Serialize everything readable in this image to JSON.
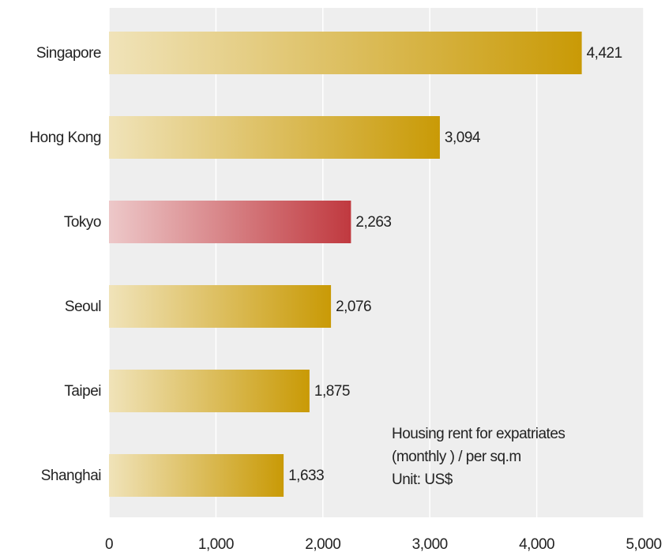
{
  "chart_data": {
    "type": "barh",
    "categories": [
      "Singapore",
      "Hong Kong",
      "Tokyo",
      "Seoul",
      "Taipei",
      "Shanghai"
    ],
    "values": [
      4421,
      3094,
      2263,
      2076,
      1875,
      1633
    ],
    "value_labels": [
      "4,421",
      "3,094",
      "2,263",
      "2,076",
      "1,875",
      "1,633"
    ],
    "colors": [
      "#c99a06",
      "#c99a06",
      "#c0393f",
      "#c99a06",
      "#c99a06",
      "#c99a06"
    ],
    "xlim": [
      0,
      5000
    ],
    "xticks": [
      0,
      {
        "value": 1000,
        "label": "1,000"
      },
      {
        "value": 2000,
        "label": "2,000"
      },
      {
        "value": 3000,
        "label": "3,000"
      },
      {
        "value": 4000,
        "label": "4,000"
      },
      {
        "value": 5000,
        "label": "5,000"
      }
    ],
    "grid": true,
    "annotation": [
      "Housing rent for expatriates",
      " (monthly ) / per sq.m",
      "Unit: US$"
    ]
  }
}
